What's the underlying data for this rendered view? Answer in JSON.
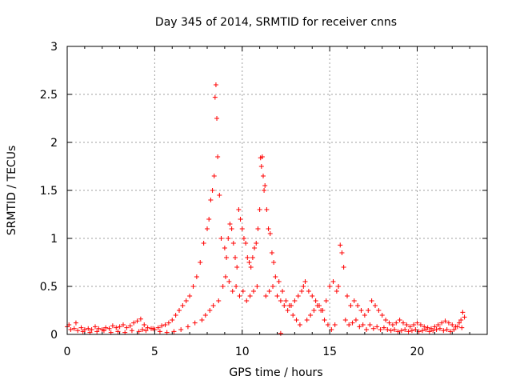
{
  "chart_data": {
    "type": "scatter",
    "title": "Day 345 of 2014, SRMTID for receiver cnns",
    "xlabel": "GPS time / hours",
    "ylabel": "SRMTID / TECUs",
    "xlim": [
      0,
      24
    ],
    "ylim": [
      0,
      3
    ],
    "xticks": [
      0,
      5,
      10,
      15,
      20
    ],
    "yticks": [
      0,
      0.5,
      1,
      1.5,
      2,
      2.5,
      3
    ],
    "xtick_labels": [
      "0",
      "5",
      "10",
      "15",
      "20"
    ],
    "ytick_labels": [
      "0",
      "0.5",
      "1",
      "1.5",
      "2",
      "2.5",
      "3"
    ],
    "grid": true,
    "marker": "plus",
    "color": "#ff0000",
    "series": [
      {
        "name": "SRMTID",
        "x": [
          0.0,
          0.2,
          0.4,
          0.6,
          0.8,
          1.0,
          1.2,
          1.4,
          1.6,
          1.8,
          2.0,
          2.2,
          2.4,
          2.6,
          2.8,
          3.0,
          3.2,
          3.4,
          3.6,
          3.8,
          4.0,
          4.2,
          4.4,
          4.6,
          4.8,
          5.0,
          5.2,
          5.4,
          5.6,
          5.8,
          6.0,
          6.2,
          6.4,
          6.6,
          6.8,
          7.0,
          7.2,
          7.4,
          7.6,
          7.8,
          8.0,
          8.1,
          8.2,
          8.3,
          8.4,
          8.45,
          8.5,
          8.55,
          8.6,
          8.7,
          8.8,
          9.0,
          9.1,
          9.2,
          9.3,
          9.4,
          9.5,
          9.6,
          9.7,
          9.8,
          9.9,
          10.0,
          10.1,
          10.2,
          10.3,
          10.4,
          10.5,
          10.6,
          10.7,
          10.8,
          10.9,
          11.0,
          11.05,
          11.1,
          11.15,
          11.2,
          11.25,
          11.3,
          11.4,
          11.5,
          11.6,
          11.7,
          11.8,
          12.0,
          12.2,
          12.4,
          12.6,
          12.8,
          13.0,
          13.2,
          13.4,
          13.5,
          13.6,
          13.8,
          14.0,
          14.2,
          14.4,
          14.6,
          14.8,
          15.0,
          15.2,
          15.4,
          15.5,
          15.6,
          15.7,
          15.8,
          16.0,
          16.2,
          16.4,
          16.6,
          16.8,
          17.0,
          17.2,
          17.4,
          17.6,
          17.8,
          18.0,
          18.2,
          18.4,
          18.6,
          18.8,
          19.0,
          19.2,
          19.4,
          19.6,
          19.8,
          20.0,
          20.2,
          20.4,
          20.6,
          20.8,
          21.0,
          21.2,
          21.4,
          21.6,
          21.8,
          22.0,
          22.2,
          22.4,
          22.5,
          22.6,
          22.7,
          0.1,
          0.5,
          0.9,
          1.3,
          1.7,
          2.1,
          2.5,
          2.9,
          3.3,
          3.7,
          4.1,
          4.3,
          4.5,
          4.9,
          5.3,
          5.7,
          6.1,
          6.5,
          6.9,
          7.3,
          7.7,
          7.9,
          8.15,
          8.35,
          8.65,
          8.9,
          9.05,
          9.25,
          9.45,
          9.65,
          9.85,
          10.05,
          10.25,
          10.45,
          10.65,
          10.85,
          11.35,
          11.55,
          11.75,
          11.9,
          12.1,
          12.3,
          12.5,
          12.7,
          12.9,
          13.1,
          13.3,
          13.7,
          13.9,
          14.1,
          14.3,
          14.5,
          14.7,
          14.9,
          15.1,
          15.3,
          15.9,
          16.1,
          16.3,
          16.5,
          16.7,
          16.9,
          17.1,
          17.3,
          17.5,
          17.7,
          17.9,
          18.1,
          18.3,
          18.5,
          18.7,
          18.9,
          19.1,
          19.3,
          19.5,
          19.7,
          19.9,
          20.1,
          20.3,
          20.5,
          20.7,
          20.9,
          21.1,
          21.3,
          21.5,
          21.7,
          21.9,
          22.1,
          22.3,
          22.55,
          12.2
        ],
        "y": [
          0.08,
          0.05,
          0.06,
          0.04,
          0.07,
          0.05,
          0.06,
          0.05,
          0.08,
          0.06,
          0.05,
          0.07,
          0.06,
          0.09,
          0.07,
          0.08,
          0.1,
          0.07,
          0.09,
          0.12,
          0.14,
          0.16,
          0.1,
          0.07,
          0.06,
          0.05,
          0.07,
          0.09,
          0.1,
          0.12,
          0.15,
          0.2,
          0.25,
          0.3,
          0.35,
          0.4,
          0.5,
          0.6,
          0.75,
          0.95,
          1.1,
          1.2,
          1.4,
          1.5,
          1.65,
          2.47,
          2.6,
          2.25,
          1.85,
          1.45,
          1.0,
          0.9,
          0.8,
          1.0,
          1.15,
          1.1,
          0.95,
          0.8,
          0.7,
          1.3,
          1.2,
          1.1,
          1.0,
          0.95,
          0.8,
          0.75,
          0.7,
          0.8,
          0.9,
          0.95,
          1.1,
          1.3,
          1.84,
          1.75,
          1.85,
          1.65,
          1.5,
          1.55,
          1.3,
          1.1,
          1.05,
          0.85,
          0.75,
          0.4,
          0.35,
          0.3,
          0.25,
          0.3,
          0.35,
          0.4,
          0.45,
          0.5,
          0.55,
          0.45,
          0.4,
          0.35,
          0.3,
          0.25,
          0.35,
          0.5,
          0.55,
          0.45,
          0.5,
          0.93,
          0.85,
          0.7,
          0.4,
          0.3,
          0.35,
          0.3,
          0.25,
          0.2,
          0.25,
          0.35,
          0.3,
          0.25,
          0.2,
          0.15,
          0.12,
          0.1,
          0.12,
          0.15,
          0.12,
          0.1,
          0.08,
          0.1,
          0.12,
          0.1,
          0.08,
          0.07,
          0.06,
          0.08,
          0.1,
          0.12,
          0.14,
          0.12,
          0.1,
          0.08,
          0.12,
          0.15,
          0.23,
          0.18,
          0.1,
          0.12,
          0.03,
          0.02,
          0.03,
          0.04,
          0.02,
          0.03,
          0.02,
          0.04,
          0.03,
          0.05,
          0.04,
          0.06,
          0.03,
          0.02,
          0.03,
          0.05,
          0.08,
          0.12,
          0.15,
          0.2,
          0.25,
          0.3,
          0.35,
          0.5,
          0.6,
          0.55,
          0.45,
          0.5,
          0.4,
          0.45,
          0.35,
          0.4,
          0.45,
          0.5,
          0.4,
          0.45,
          0.5,
          0.6,
          0.55,
          0.45,
          0.35,
          0.3,
          0.2,
          0.15,
          0.1,
          0.15,
          0.2,
          0.25,
          0.3,
          0.25,
          0.15,
          0.1,
          0.05,
          0.1,
          0.15,
          0.1,
          0.12,
          0.15,
          0.08,
          0.1,
          0.05,
          0.1,
          0.06,
          0.08,
          0.05,
          0.07,
          0.05,
          0.04,
          0.05,
          0.03,
          0.04,
          0.05,
          0.03,
          0.04,
          0.05,
          0.03,
          0.04,
          0.05,
          0.03,
          0.04,
          0.05,
          0.06,
          0.04,
          0.05,
          0.03,
          0.05,
          0.08,
          0.07,
          0.01
        ]
      }
    ]
  }
}
